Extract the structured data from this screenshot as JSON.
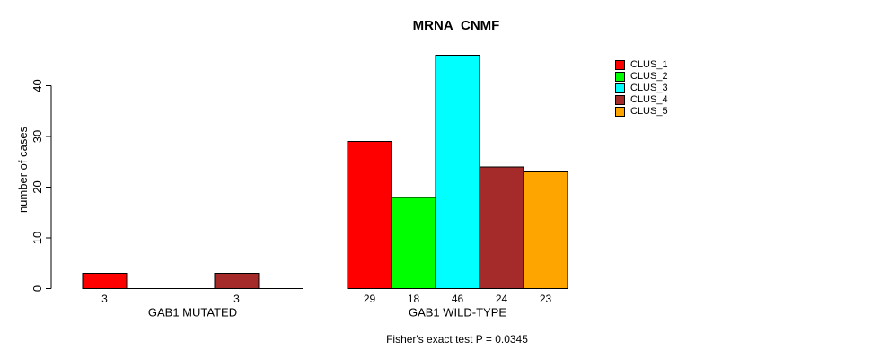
{
  "figure": {
    "background_color": "#FFFFFF",
    "axis_color": "#000000"
  },
  "chart_data": {
    "type": "bar",
    "title": "MRNA_CNMF",
    "xlabel": "",
    "ylabel": "number of cases",
    "ylim": [
      0,
      46
    ],
    "yticks": [
      0,
      10,
      20,
      30,
      40
    ],
    "grid": false,
    "bar_border_color": "#000000",
    "legend_position": "top-right",
    "series": [
      {
        "name": "CLUS_1",
        "color": "#FF0000"
      },
      {
        "name": "CLUS_2",
        "color": "#00FF00"
      },
      {
        "name": "CLUS_3",
        "color": "#00FFFF"
      },
      {
        "name": "CLUS_4",
        "color": "#A52A2A"
      },
      {
        "name": "CLUS_5",
        "color": "#FFA500"
      }
    ],
    "groups": [
      {
        "label": "GAB1 MUTATED",
        "values": [
          3,
          0,
          0,
          3,
          0
        ]
      },
      {
        "label": "GAB1 WILD-TYPE",
        "values": [
          29,
          18,
          46,
          24,
          23
        ]
      }
    ],
    "value_label_rule": "shown under each bar only when value > 0",
    "annotation": "Fisher's exact test P = 0.0345"
  }
}
